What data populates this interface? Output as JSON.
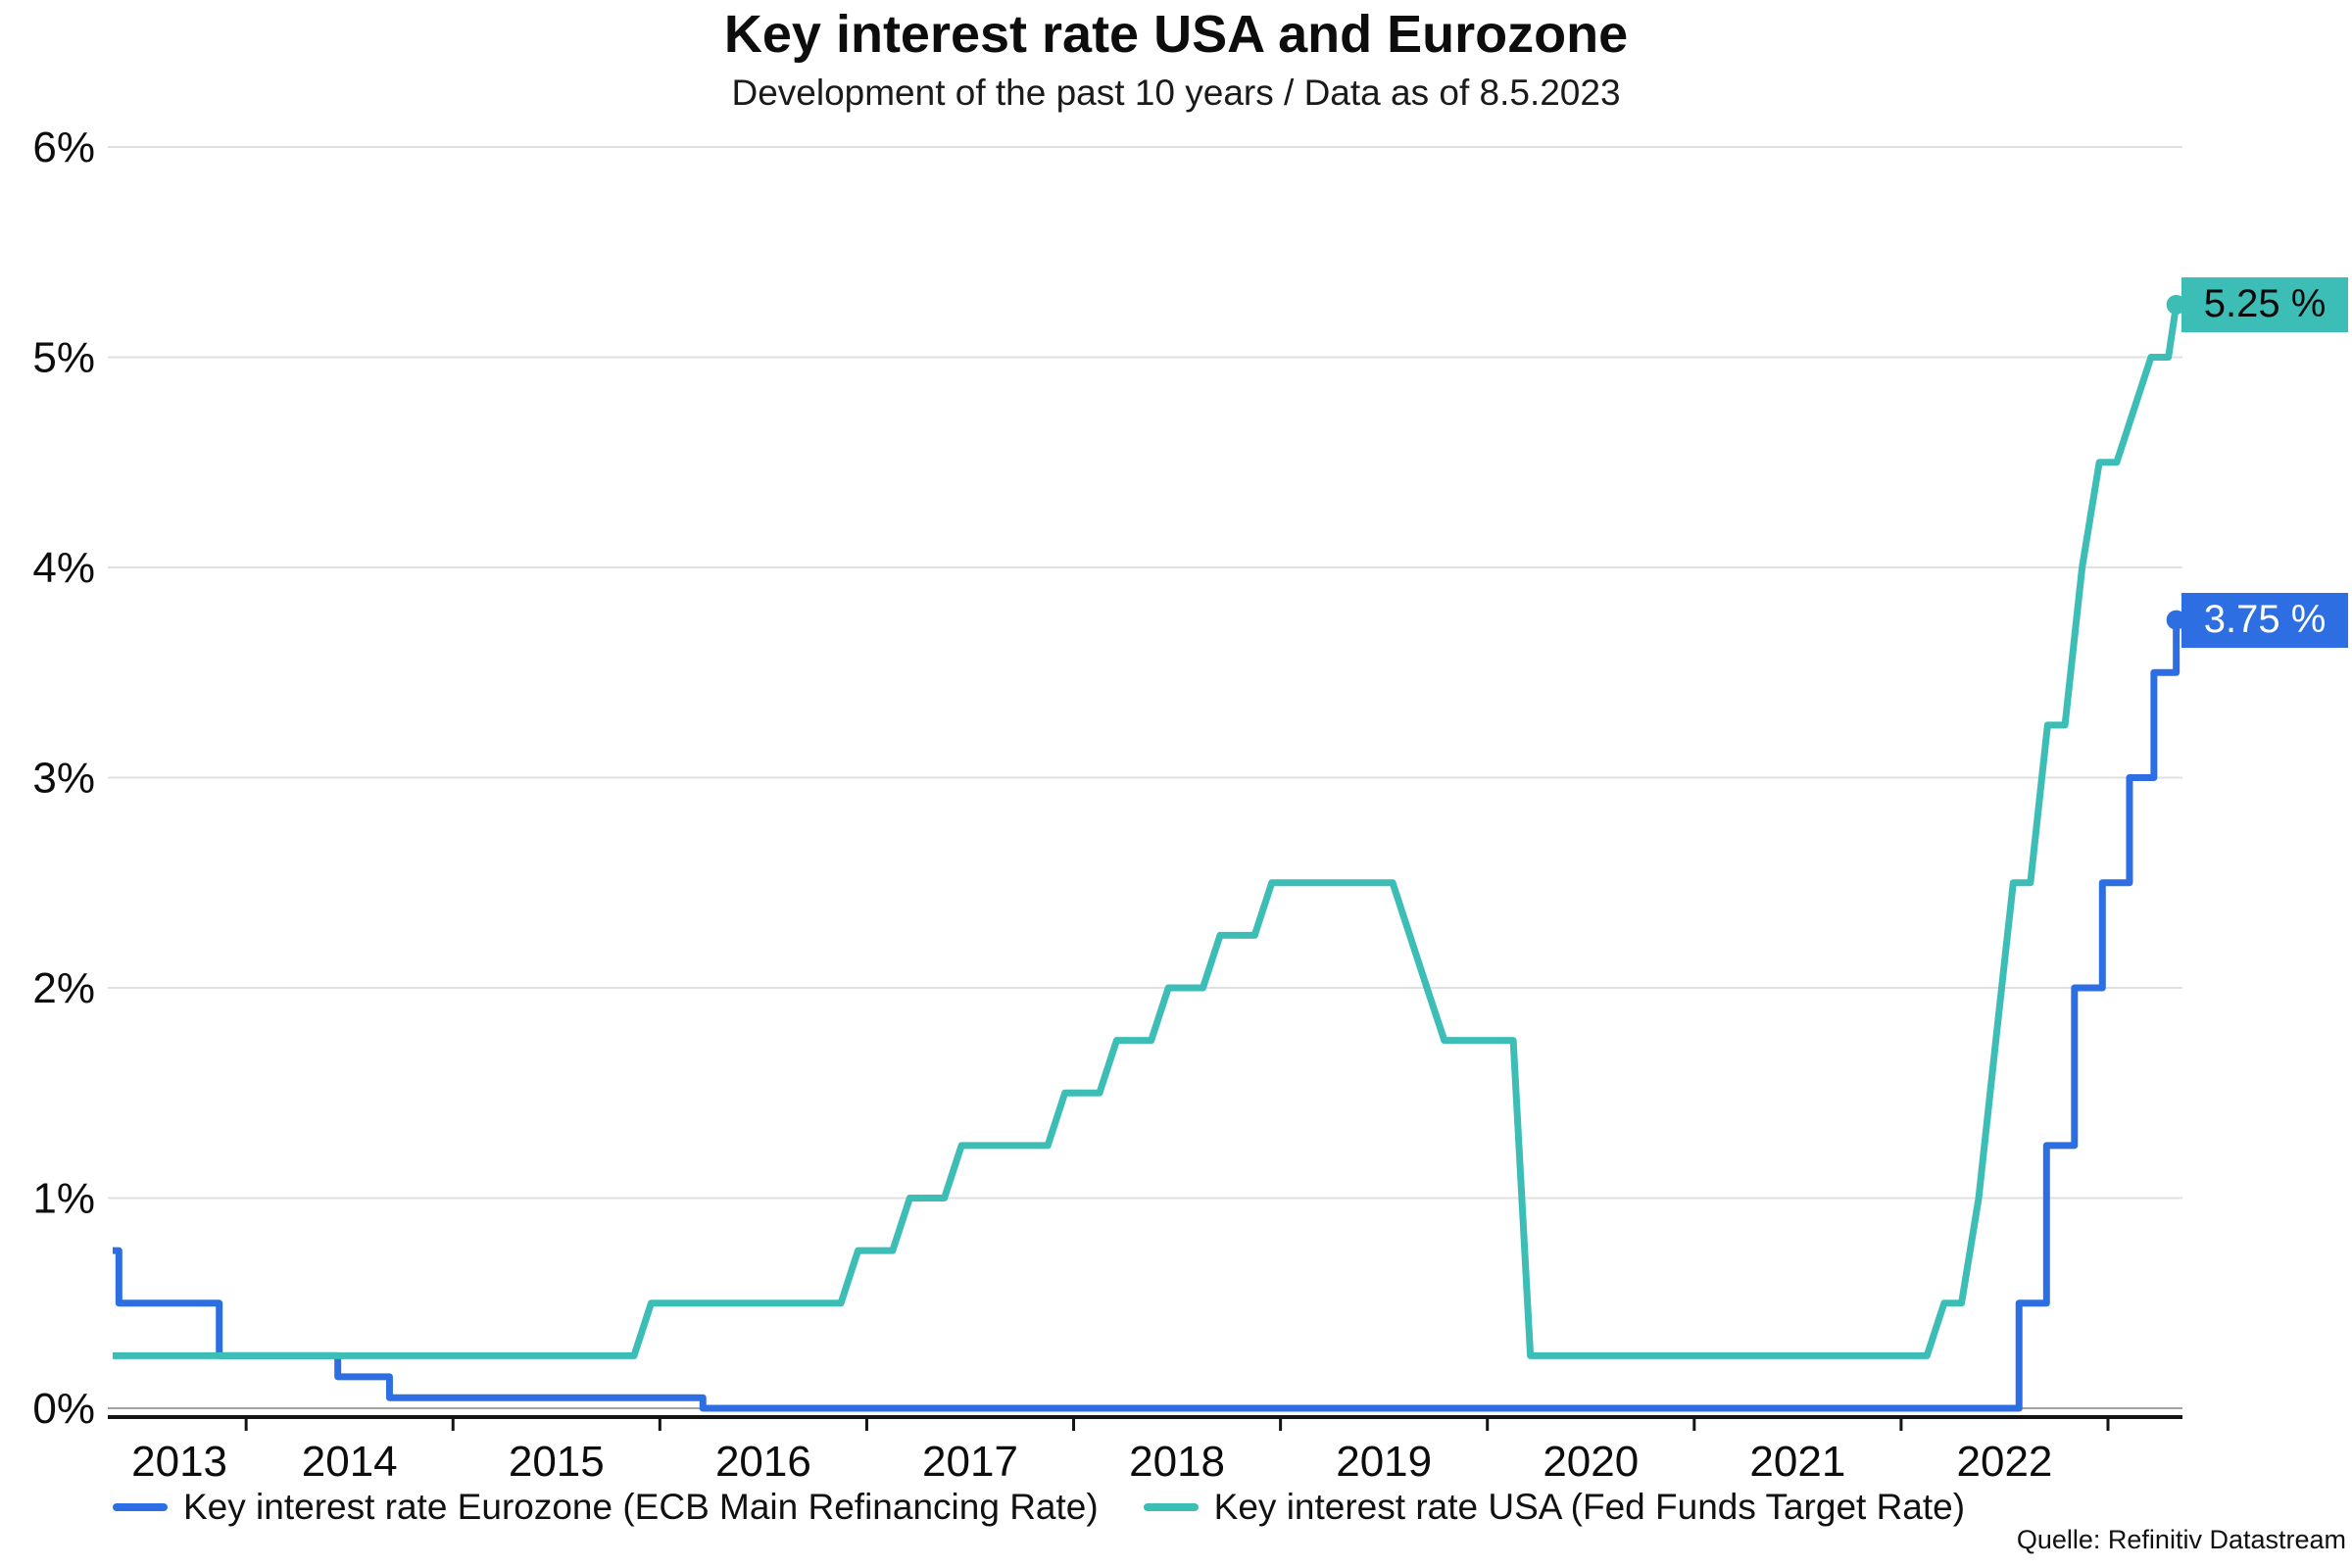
{
  "header": {
    "title": "Key interest rate USA and Eurozone",
    "subtitle": "Development of the past 10 years / Data as of 8.5.2023"
  },
  "colors": {
    "eurozone_blue": "#2d6fe3",
    "usa_teal": "#3cbdb6",
    "grid": "#e0e0e0",
    "zero_grid": "#a3a3a3",
    "axis": "#141414",
    "text": "#0d0d0d",
    "badge_usa_text": "#0b0b0b",
    "badge_eurozone_text": "#ffffff"
  },
  "chart_data": {
    "type": "line",
    "title": "Key interest rate USA and Eurozone",
    "subtitle": "Development of the past 10 years / Data as of 8.5.2023",
    "xlabel": "",
    "ylabel": "",
    "x_domain": [
      2013.355,
      2023.36
    ],
    "y_domain": [
      0,
      6
    ],
    "grid": "horizontal",
    "legend_position": "bottom",
    "y_ticks": [
      {
        "v": 0,
        "label": "0%"
      },
      {
        "v": 1,
        "label": "1%"
      },
      {
        "v": 2,
        "label": "2%"
      },
      {
        "v": 3,
        "label": "3%"
      },
      {
        "v": 4,
        "label": "4%"
      },
      {
        "v": 5,
        "label": "5%"
      },
      {
        "v": 6,
        "label": "6%"
      }
    ],
    "x_ticks": [
      2014,
      2015,
      2016,
      2017,
      2018,
      2019,
      2020,
      2021,
      2022,
      2023
    ],
    "x_labels": [
      {
        "year": 2013,
        "label": "2013"
      },
      {
        "year": 2014,
        "label": "2014"
      },
      {
        "year": 2015,
        "label": "2015"
      },
      {
        "year": 2016,
        "label": "2016"
      },
      {
        "year": 2017,
        "label": "2017"
      },
      {
        "year": 2018,
        "label": "2018"
      },
      {
        "year": 2019,
        "label": "2019"
      },
      {
        "year": 2020,
        "label": "2020"
      },
      {
        "year": 2021,
        "label": "2021"
      },
      {
        "year": 2022,
        "label": "2022"
      }
    ],
    "series": [
      {
        "id": "eurozone",
        "name": "Key interest rate Eurozone (ECB Main Refinancing Rate)",
        "color_key": "eurozone_blue",
        "style": "step",
        "end_label": "3.75 %",
        "end_value": 3.75,
        "points": [
          [
            2013.355,
            0.75
          ],
          [
            2013.385,
            0.5
          ],
          [
            2013.87,
            0.25
          ],
          [
            2014.443,
            0.15
          ],
          [
            2014.693,
            0.05
          ],
          [
            2016.208,
            0.0
          ],
          [
            2022.57,
            0.5
          ],
          [
            2022.703,
            1.25
          ],
          [
            2022.838,
            2.0
          ],
          [
            2022.973,
            2.5
          ],
          [
            2023.104,
            3.0
          ],
          [
            2023.222,
            3.5
          ],
          [
            2023.33,
            3.75
          ]
        ]
      },
      {
        "id": "usa",
        "name": "Key interest rate USA (Fed Funds Target Rate)",
        "color_key": "usa_teal",
        "style": "line",
        "end_label": "5.25 %",
        "end_value": 5.25,
        "points": [
          [
            2013.355,
            0.25
          ],
          [
            2015.875,
            0.25
          ],
          [
            2015.958,
            0.5
          ],
          [
            2016.875,
            0.5
          ],
          [
            2016.958,
            0.75
          ],
          [
            2017.125,
            0.75
          ],
          [
            2017.208,
            1.0
          ],
          [
            2017.375,
            1.0
          ],
          [
            2017.458,
            1.25
          ],
          [
            2017.875,
            1.25
          ],
          [
            2017.958,
            1.5
          ],
          [
            2018.125,
            1.5
          ],
          [
            2018.208,
            1.75
          ],
          [
            2018.375,
            1.75
          ],
          [
            2018.458,
            2.0
          ],
          [
            2018.625,
            2.0
          ],
          [
            2018.708,
            2.25
          ],
          [
            2018.875,
            2.25
          ],
          [
            2018.958,
            2.5
          ],
          [
            2019.542,
            2.5
          ],
          [
            2019.625,
            2.25
          ],
          [
            2019.708,
            2.0
          ],
          [
            2019.792,
            1.75
          ],
          [
            2020.125,
            1.75
          ],
          [
            2020.208,
            0.25
          ],
          [
            2022.125,
            0.25
          ],
          [
            2022.208,
            0.5
          ],
          [
            2022.292,
            0.5
          ],
          [
            2022.375,
            1.0
          ],
          [
            2022.458,
            1.75
          ],
          [
            2022.542,
            2.5
          ],
          [
            2022.625,
            2.5
          ],
          [
            2022.708,
            3.25
          ],
          [
            2022.792,
            3.25
          ],
          [
            2022.875,
            4.0
          ],
          [
            2022.958,
            4.5
          ],
          [
            2023.042,
            4.5
          ],
          [
            2023.125,
            4.75
          ],
          [
            2023.208,
            5.0
          ],
          [
            2023.292,
            5.0
          ],
          [
            2023.33,
            5.25
          ]
        ]
      }
    ]
  },
  "legend": {
    "items": [
      {
        "label": "Key interest rate Eurozone (ECB Main Refinancing Rate)",
        "color_key": "eurozone_blue"
      },
      {
        "label": "Key interest rate USA (Fed Funds Target Rate)",
        "color_key": "usa_teal"
      }
    ]
  },
  "source": "Quelle: Refinitiv Datastream"
}
